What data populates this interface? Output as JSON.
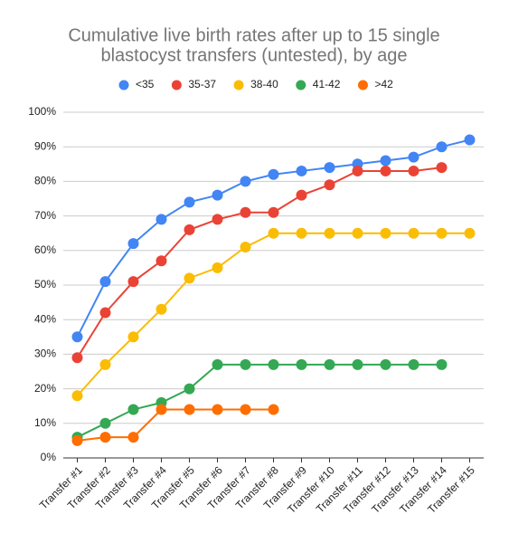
{
  "chart_data": {
    "type": "line",
    "title": [
      "Cumulative live birth rates after up to 15 single",
      "blastocyst transfers (untested), by age"
    ],
    "categories": [
      "Transfer #1",
      "Transfer #2",
      "Transfer #3",
      "Transfer #4",
      "Transfer #5",
      "Transfer #6",
      "Transfer #7",
      "Transfer #8",
      "Transfer #9",
      "Transfer #10",
      "Transfer #11",
      "Transfer #12",
      "Transfer #13",
      "Transfer #14",
      "Transfer #15"
    ],
    "series": [
      {
        "name": "<35",
        "color": "#4285f4",
        "values": [
          35,
          51,
          62,
          69,
          74,
          76,
          80,
          82,
          83,
          84,
          85,
          86,
          87,
          90,
          92
        ]
      },
      {
        "name": "35-37",
        "color": "#ea4335",
        "values": [
          29,
          42,
          51,
          57,
          66,
          69,
          71,
          71,
          76,
          79,
          83,
          83,
          83,
          84,
          null
        ]
      },
      {
        "name": "38-40",
        "color": "#fbbc04",
        "values": [
          18,
          27,
          35,
          43,
          52,
          55,
          61,
          65,
          65,
          65,
          65,
          65,
          65,
          65,
          65
        ]
      },
      {
        "name": "41-42",
        "color": "#34a853",
        "values": [
          6,
          10,
          14,
          16,
          20,
          27,
          27,
          27,
          27,
          27,
          27,
          27,
          27,
          27,
          null
        ]
      },
      {
        "name": ">42",
        "color": "#ff6d01",
        "values": [
          5,
          6,
          6,
          14,
          14,
          14,
          14,
          14,
          null,
          null,
          null,
          null,
          null,
          null,
          null
        ]
      }
    ],
    "ylim": [
      0,
      100
    ],
    "yticks": [
      {
        "value": 0,
        "label": "0%"
      },
      {
        "value": 10,
        "label": "10%"
      },
      {
        "value": 20,
        "label": "20%"
      },
      {
        "value": 30,
        "label": "30%"
      },
      {
        "value": 40,
        "label": "40%"
      },
      {
        "value": 50,
        "label": "50%"
      },
      {
        "value": 60,
        "label": "60%"
      },
      {
        "value": 70,
        "label": "70%"
      },
      {
        "value": 80,
        "label": "80%"
      },
      {
        "value": 90,
        "label": "90%"
      },
      {
        "value": 100,
        "label": "100%"
      }
    ],
    "grid": true,
    "legend": "top"
  }
}
